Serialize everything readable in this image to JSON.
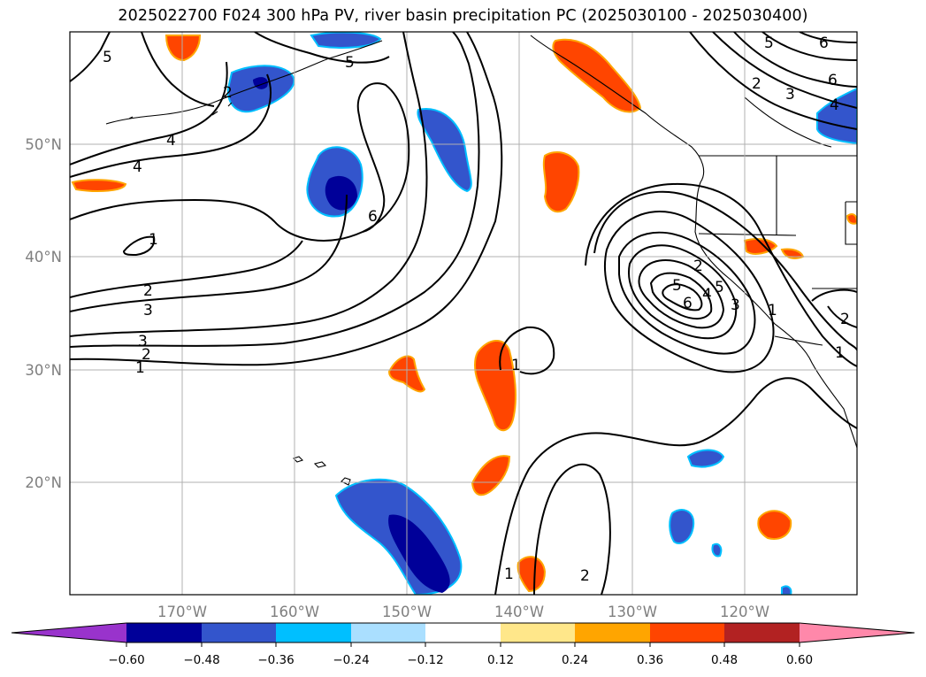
{
  "title": "2025022700 F024 300 hPa PV, river basin precipitation PC (2025030100 - 2025030400)",
  "latitude_labels": [
    "50°N",
    "40°N",
    "30°N",
    "20°N"
  ],
  "longitude_labels": [
    "170°W",
    "160°W",
    "150°W",
    "140°W",
    "130°W",
    "120°W"
  ],
  "colorbar": {
    "tick_labels": [
      "−0.60",
      "−0.48",
      "−0.36",
      "−0.24",
      "−0.12",
      "0.12",
      "0.24",
      "0.36",
      "0.48",
      "0.60"
    ],
    "colors": [
      "#9933cc",
      "#000099",
      "#3355cc",
      "#00bfff",
      "#aadfff",
      "#ffffff",
      "#ffe78a",
      "#ffa500",
      "#ff4500",
      "#b22222",
      "#ff88aa"
    ]
  },
  "contour_labels": {
    "c1": "1",
    "c2": "2",
    "c3": "3",
    "c4": "4",
    "c5": "5",
    "c6": "6"
  }
}
